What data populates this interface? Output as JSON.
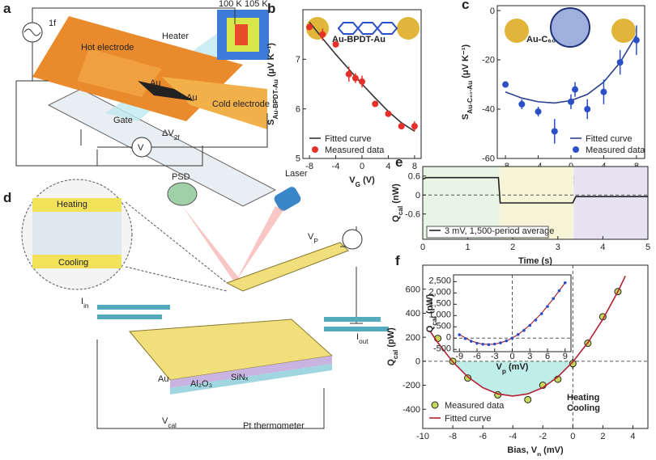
{
  "panel_a": {
    "label": "a",
    "labels": [
      "1f",
      "Heater",
      "Hot electrode",
      "Au",
      "Au",
      "Cold electrode",
      "Gate",
      {
        "main": "ΔV",
        "sub": "2f"
      },
      "V",
      "100 K",
      "105 K"
    ]
  },
  "panel_d": {
    "label": "d",
    "labels": [
      "Heating",
      "Cooling",
      "PSD",
      "Laser",
      {
        "main": "V",
        "sub": "P"
      },
      {
        "main": "I",
        "sub": "in"
      },
      {
        "main": "I",
        "sub": "out"
      },
      "Au",
      "Al₂O₃",
      "SiNₓ",
      "Pt thermometer",
      {
        "main": "V",
        "sub": "cal"
      }
    ]
  },
  "chart_data": [
    {
      "type": "scatter",
      "panel_label": "b",
      "annotations": [
        "Au-BPDT-Au"
      ],
      "x_label": {
        "main": "V",
        "sub": "G",
        "rest": " (V)"
      },
      "y_label": {
        "main": "S",
        "sub": "Au-BPDT-Au",
        "rest": " (μV K⁻¹)"
      },
      "xlim": [
        -9,
        9
      ],
      "xticks": [
        -8,
        -4,
        0,
        4,
        8
      ],
      "ylim": [
        5,
        8
      ],
      "yticks": [
        5,
        6,
        7
      ],
      "legend": "lower left",
      "series": [
        {
          "name": "Fitted curve",
          "style": "line",
          "color": "#333333",
          "x": [
            -8,
            -6,
            -4,
            -2,
            0,
            2,
            4,
            6,
            8
          ],
          "values": [
            7.75,
            7.42,
            7.1,
            6.8,
            6.5,
            6.22,
            5.95,
            5.72,
            5.55
          ]
        },
        {
          "name": "Measured data",
          "style": "marker",
          "color": "#e8302a",
          "x": [
            -8,
            -6,
            -4,
            -2,
            -1,
            0,
            2,
            4,
            6,
            8
          ],
          "values": [
            7.65,
            7.5,
            7.3,
            6.7,
            6.62,
            6.55,
            6.1,
            5.9,
            5.65,
            5.65
          ],
          "errors": [
            0.05,
            0.12,
            0.05,
            0.15,
            0.1,
            0.12,
            0.05,
            0.05,
            0.05,
            0.1
          ]
        }
      ]
    },
    {
      "type": "scatter",
      "panel_label": "c",
      "annotations": [
        "Au-C₆₀-Au"
      ],
      "x_label": {
        "main": "V",
        "sub": "G",
        "rest": " (V)"
      },
      "y_label": {
        "main": "S",
        "sub": "Au-C₆₀-Au",
        "rest": " (μV K⁻¹)"
      },
      "xlim": [
        -9,
        9
      ],
      "xticks": [
        -8,
        -4,
        0,
        4,
        8
      ],
      "ylim": [
        -60,
        2
      ],
      "yticks": [
        -60,
        -40,
        -20,
        0
      ],
      "legend": "lower right",
      "series": [
        {
          "name": "Fitted curve",
          "style": "line",
          "color": "#2b3f8f",
          "x": [
            -8,
            -6,
            -4,
            -2,
            0,
            2,
            4,
            6,
            8
          ],
          "values": [
            -33,
            -35.5,
            -37,
            -37.5,
            -36.5,
            -34,
            -29,
            -21,
            -10
          ]
        },
        {
          "name": "Measured data",
          "style": "marker",
          "color": "#2a4fc7",
          "x": [
            -8,
            -6,
            -4,
            -2,
            0,
            0.5,
            2,
            4,
            6,
            8
          ],
          "values": [
            -30,
            -38,
            -41,
            -49,
            -37,
            -32,
            -40,
            -33,
            -21,
            -12
          ],
          "errors": [
            1,
            2,
            2,
            5,
            3,
            3,
            4,
            5,
            5,
            6
          ]
        }
      ]
    },
    {
      "type": "line",
      "panel_label": "e",
      "x_label": "Time (s)",
      "y_label": {
        "main": "Q",
        "sub": "cal",
        "rest": " (nW)"
      },
      "xlim": [
        0,
        5
      ],
      "xticks": [
        0,
        1,
        2,
        3,
        4,
        5
      ],
      "ylim": [
        -1.4,
        0.9
      ],
      "yticks": [
        -0.6,
        0,
        0.6
      ],
      "legend": "lower left",
      "series": [
        {
          "name": "3 mV, 1,500-period average",
          "style": "line",
          "color": "#222222",
          "x": [
            0,
            0.08,
            1.68,
            1.72,
            3.33,
            3.4,
            5
          ],
          "values": [
            0.5,
            0.55,
            0.55,
            -0.25,
            -0.25,
            -0.05,
            -0.05
          ]
        }
      ]
    },
    {
      "type": "scatter",
      "panel_label": "f",
      "annotations": [
        "Heating",
        "Cooling"
      ],
      "x_label": {
        "main": "Bias, V",
        "sub": "p",
        "rest": " (mV)"
      },
      "y_label": {
        "main": "Q",
        "sub": "cal",
        "rest": " (pW)"
      },
      "xlim": [
        -10,
        5
      ],
      "xticks": [
        -10,
        -8,
        -6,
        -4,
        -2,
        0,
        2,
        4
      ],
      "ylim": [
        -560,
        800
      ],
      "yticks": [
        -400,
        -200,
        0,
        200,
        400,
        600
      ],
      "legend": "lower left",
      "series": [
        {
          "name": "Measured data",
          "style": "marker",
          "color": "#c8d85a",
          "x": [
            -9,
            -8,
            -7,
            -5,
            -3,
            -2,
            -1,
            0,
            1,
            2,
            3
          ],
          "values": [
            190,
            0,
            -140,
            -280,
            -320,
            -200,
            -150,
            -20,
            150,
            370,
            580
          ],
          "errors": [
            20,
            20,
            20,
            25,
            25,
            20,
            20,
            40,
            20,
            20,
            25
          ]
        },
        {
          "name": "Fitted curve",
          "style": "line",
          "color": "#b22234",
          "x": [
            -9.5,
            -9,
            -8,
            -7,
            -6,
            -5,
            -4,
            -3,
            -2,
            -1,
            0,
            1,
            2,
            3,
            3.5
          ],
          "values": [
            248,
            155,
            -5,
            -130,
            -220,
            -272,
            -290,
            -272,
            -220,
            -130,
            -5,
            155,
            350,
            580,
            710
          ]
        }
      ]
    },
    {
      "type": "scatter",
      "x_label": {
        "main": "V",
        "sub": "p",
        "rest": " (mV)"
      },
      "y_label": {
        "main": "Q",
        "sub": "cal",
        "rest": " (pW)"
      },
      "xlim": [
        -10,
        10
      ],
      "xticks": [
        -9,
        -6,
        -3,
        0,
        3,
        6,
        9
      ],
      "ylim": [
        -600,
        2800
      ],
      "yticks": [
        -500,
        0,
        500,
        {
          "value": 1000,
          "label": "1,000"
        },
        {
          "value": 1500,
          "label": "1,500"
        },
        {
          "value": 2000,
          "label": "2,000"
        },
        {
          "value": 2500,
          "label": "2,500"
        }
      ],
      "series": [
        {
          "style": "line",
          "color": "#b22234",
          "x": [
            -9,
            -7,
            -5,
            -3,
            -1,
            1,
            3,
            5,
            7,
            9
          ],
          "values": [
            155,
            -130,
            -272,
            -272,
            -130,
            155,
            580,
            1100,
            1750,
            2450
          ]
        },
        {
          "style": "marker",
          "color": "#2a4fc7",
          "x": [
            -9,
            -8,
            -7,
            -6,
            -5,
            -4,
            -3,
            -2,
            -1,
            0,
            1,
            2,
            3,
            4,
            5,
            6,
            7,
            8,
            9
          ],
          "values": [
            150,
            -20,
            -140,
            -230,
            -270,
            -290,
            -260,
            -210,
            -120,
            0,
            160,
            340,
            560,
            800,
            1080,
            1400,
            1750,
            2100,
            2450
          ]
        }
      ]
    }
  ]
}
